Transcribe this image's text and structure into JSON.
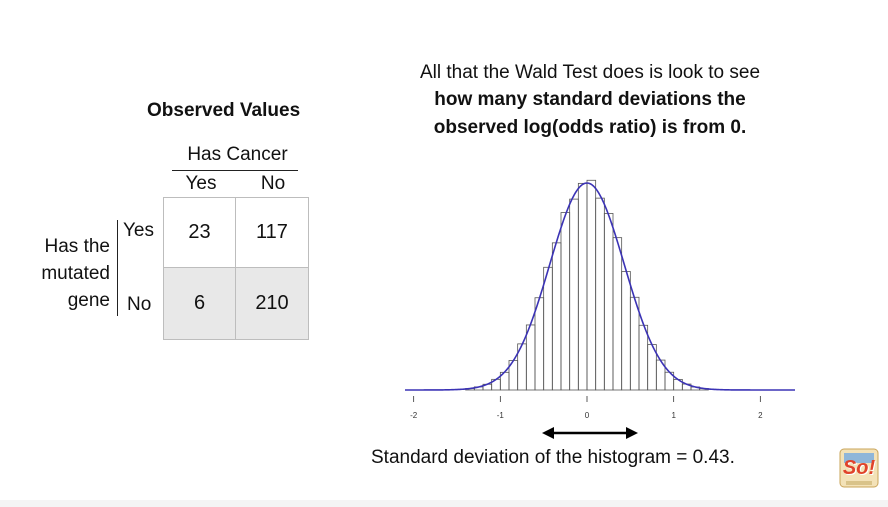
{
  "heading": {
    "line1": "All that the Wald Test does is look to see",
    "line2": "how many standard deviations the",
    "line3": "observed log(odds ratio) is from 0."
  },
  "table": {
    "title": "Observed Values",
    "column_group": "Has Cancer",
    "columns": [
      "Yes",
      "No"
    ],
    "row_group_lines": [
      "Has the",
      "mutated",
      "gene"
    ],
    "rows": [
      {
        "label": "Yes",
        "values": [
          "23",
          "117"
        ]
      },
      {
        "label": "No",
        "values": [
          "6",
          "210"
        ]
      }
    ],
    "colors": {
      "shaded_row": "#e8e8e8",
      "border": "#bdbdbd"
    }
  },
  "chart_data": {
    "type": "histogram",
    "x_ticks": [
      "-2",
      "-1",
      "0",
      "1",
      "2"
    ],
    "xlim": [
      -2.1,
      2.4
    ],
    "mean": 0,
    "sd": 0.43,
    "bin_width": 0.1,
    "curve_color": "#3b33b5",
    "bar_edge_color": "#555555"
  },
  "annotation": {
    "sd_text": "Standard deviation of the histogram = 0.43.",
    "arrow_span": [
      -0.5,
      0.5
    ]
  },
  "logo": {
    "text": "So!"
  }
}
